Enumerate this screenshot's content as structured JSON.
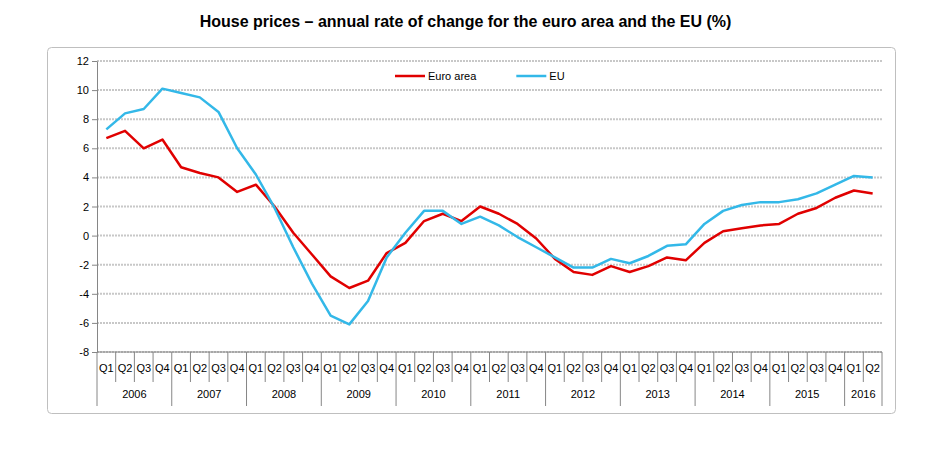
{
  "chart_data": {
    "type": "line",
    "title": "House prices – annual rate of change for the euro area and the EU (%)",
    "categories": [
      "Q1",
      "Q2",
      "Q3",
      "Q4",
      "Q1",
      "Q2",
      "Q3",
      "Q4",
      "Q1",
      "Q2",
      "Q3",
      "Q4",
      "Q1",
      "Q2",
      "Q3",
      "Q4",
      "Q1",
      "Q2",
      "Q3",
      "Q4",
      "Q1",
      "Q2",
      "Q3",
      "Q4",
      "Q1",
      "Q2",
      "Q3",
      "Q4",
      "Q1",
      "Q2",
      "Q3",
      "Q4",
      "Q1",
      "Q2",
      "Q3",
      "Q4",
      "Q1",
      "Q2",
      "Q3",
      "Q4",
      "Q1",
      "Q2"
    ],
    "x_groups": [
      "2006",
      "2007",
      "2008",
      "2009",
      "2010",
      "2011",
      "2012",
      "2013",
      "2014",
      "2015",
      "2016"
    ],
    "series": [
      {
        "name": "Euro area",
        "color": "#e00000",
        "values": [
          6.7,
          7.2,
          6.0,
          6.6,
          4.7,
          4.3,
          4.0,
          3.0,
          3.5,
          2.0,
          0.2,
          -1.3,
          -2.8,
          -3.6,
          -3.1,
          -1.2,
          -0.5,
          1.0,
          1.5,
          1.0,
          2.0,
          1.5,
          0.8,
          -0.2,
          -1.6,
          -2.5,
          -2.7,
          -2.1,
          -2.5,
          -2.1,
          -1.5,
          -1.7,
          -0.5,
          0.3,
          0.5,
          0.7,
          0.8,
          1.5,
          1.9,
          2.6,
          3.1,
          2.9
        ]
      },
      {
        "name": "EU",
        "color": "#33b8e8",
        "values": [
          7.3,
          8.4,
          8.7,
          10.1,
          9.8,
          9.5,
          8.5,
          6.0,
          4.2,
          1.9,
          -0.8,
          -3.3,
          -5.5,
          -6.1,
          -4.5,
          -1.5,
          0.2,
          1.7,
          1.7,
          0.8,
          1.3,
          0.7,
          -0.1,
          -0.8,
          -1.5,
          -2.2,
          -2.2,
          -1.6,
          -1.9,
          -1.4,
          -0.7,
          -0.6,
          0.8,
          1.7,
          2.1,
          2.3,
          2.3,
          2.5,
          2.9,
          3.5,
          4.1,
          4.0
        ]
      }
    ],
    "ylim": [
      -8,
      12
    ],
    "yticks": [
      -8,
      -6,
      -4,
      -2,
      0,
      2,
      4,
      6,
      8,
      10,
      12
    ],
    "grid": true,
    "legend": "top"
  }
}
